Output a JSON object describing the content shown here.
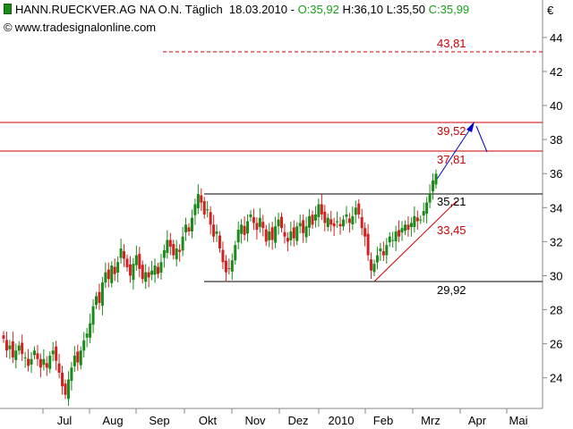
{
  "header": {
    "instrument": "HANN.RUECKVER.AG NA O.N.",
    "period": "Täglich",
    "date": "18.03.2010",
    "open": "O:35,92",
    "high": "H:36,10",
    "low": "L:35,50",
    "close": "C:35,99",
    "source": "www.tradesignalonline.com",
    "currency": "€"
  },
  "colors": {
    "up": "#1a8a1a",
    "down": "#d42020",
    "level": "#cc0000",
    "arrow": "#0000cc",
    "axis": "#888888"
  },
  "chart_data": {
    "type": "candlestick",
    "ylim": [
      22.2,
      46.2
    ],
    "yticks": [
      24,
      26,
      28,
      30,
      32,
      34,
      36,
      38,
      40,
      42,
      44
    ],
    "y_position": "right",
    "months": [
      "Jul",
      "Aug",
      "Sep",
      "Okt",
      "Nov",
      "Dez",
      "2010",
      "Feb",
      "Mrz",
      "Apr",
      "Mai"
    ],
    "closes_approx": [
      26.3,
      25.6,
      25.9,
      25.2,
      25.6,
      25.9,
      25.4,
      25.2,
      24.7,
      25.1,
      25.6,
      25.1,
      24.6,
      25.1,
      24.6,
      25.3,
      25.6,
      25.0,
      24.3,
      23.5,
      23.0,
      23.9,
      24.6,
      25.3,
      24.9,
      25.6,
      26.2,
      26.6,
      27.2,
      28.2,
      28.8,
      28.4,
      29.6,
      30.2,
      29.8,
      30.6,
      30.1,
      30.8,
      31.6,
      31.0,
      30.5,
      30.0,
      30.7,
      31.2,
      30.4,
      29.8,
      30.2,
      29.9,
      30.3,
      30.6,
      30.1,
      30.8,
      31.5,
      32.1,
      31.7,
      31.2,
      31.6,
      31.4,
      32.3,
      33.0,
      32.6,
      33.4,
      34.2,
      34.8,
      34.3,
      33.6,
      33.9,
      33.0,
      32.3,
      32.6,
      31.6,
      30.8,
      30.2,
      30.4,
      30.9,
      31.8,
      32.7,
      33.0,
      32.4,
      33.2,
      33.6,
      33.1,
      32.7,
      33.4,
      32.8,
      32.0,
      32.6,
      32.1,
      32.9,
      33.3,
      32.8,
      32.3,
      32.0,
      32.6,
      32.2,
      32.9,
      33.1,
      32.5,
      32.9,
      33.5,
      33.0,
      33.6,
      34.2,
      33.6,
      33.1,
      33.4,
      33.0,
      32.9,
      33.2,
      32.9,
      33.3,
      33.6,
      33.1,
      33.5,
      34.0,
      33.6,
      32.8,
      32.3,
      31.2,
      30.3,
      30.7,
      31.2,
      31.6,
      31.2,
      31.8,
      32.3,
      32.1,
      32.6,
      32.3,
      32.8,
      33.0,
      32.7,
      33.1,
      33.5,
      33.2,
      33.3,
      33.8,
      34.3,
      34.8,
      35.6,
      35.99
    ],
    "levels": [
      {
        "value": 43.81,
        "label": "43,81",
        "style": "dashed"
      },
      {
        "value": 39.52,
        "label": "39,52",
        "style": "solid"
      },
      {
        "value": 37.81,
        "label": "37,81",
        "style": "solid"
      },
      {
        "value": 35.21,
        "label": "35,21",
        "style": "channel"
      },
      {
        "value": 33.45,
        "label": "33,45",
        "style": "trend"
      },
      {
        "value": 29.92,
        "label": "29,92",
        "style": "channel"
      }
    ],
    "grid": false,
    "legend": "none"
  }
}
